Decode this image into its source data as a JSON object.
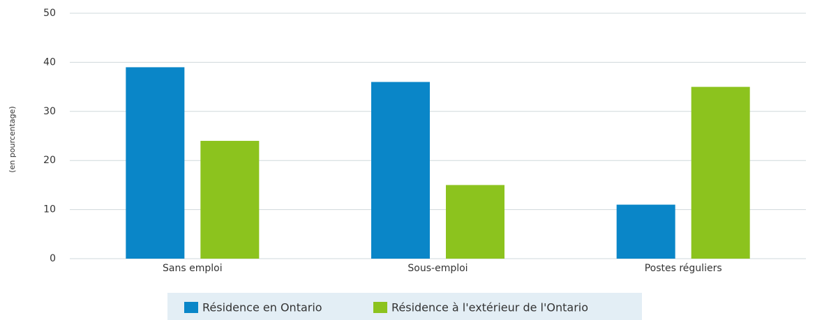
{
  "chart_data": {
    "type": "bar",
    "y_label": "(en pourcentage)",
    "categories": [
      "Sans emploi",
      "Sous-emploi",
      "Postes réguliers"
    ],
    "series": [
      {
        "name": "Résidence en Ontario",
        "color": "#0a86c8",
        "values": [
          39,
          36,
          11
        ]
      },
      {
        "name": "Résidence à l'extérieur de l'Ontario",
        "color": "#8cc31e",
        "values": [
          24,
          15,
          35
        ]
      }
    ],
    "ylim": [
      0,
      50
    ],
    "yticks": [
      0,
      10,
      20,
      30,
      40,
      50
    ],
    "grid": true,
    "legend": "bottom"
  }
}
